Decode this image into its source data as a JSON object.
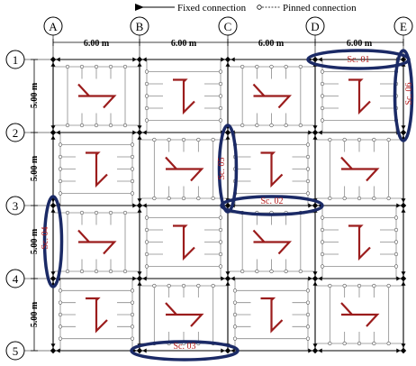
{
  "legend": {
    "fixed_label": "Fixed connection",
    "pinned_label": "Pinned connection"
  },
  "grid": {
    "columns": [
      "A",
      "B",
      "C",
      "D",
      "E"
    ],
    "rows": [
      "1",
      "2",
      "3",
      "4",
      "5"
    ],
    "bay_x_labels": [
      "6.00 m",
      "6.00 m",
      "6.00 m",
      "6.00 m"
    ],
    "bay_y_labels": [
      "5.00 m",
      "5.00 m",
      "5.00 m",
      "5.00 m"
    ]
  },
  "scenarios": [
    "Sc. 01",
    "Sc. 02",
    "Sc. 03",
    "Sc. 04",
    "Sc. 05",
    "Sc. 06"
  ],
  "colors": {
    "frame": "#000000",
    "joist": "#8a8a8a",
    "symbol": "#9b1c1c",
    "scenario_text": "#b31b1b",
    "ellipse": "#1b2a66"
  }
}
